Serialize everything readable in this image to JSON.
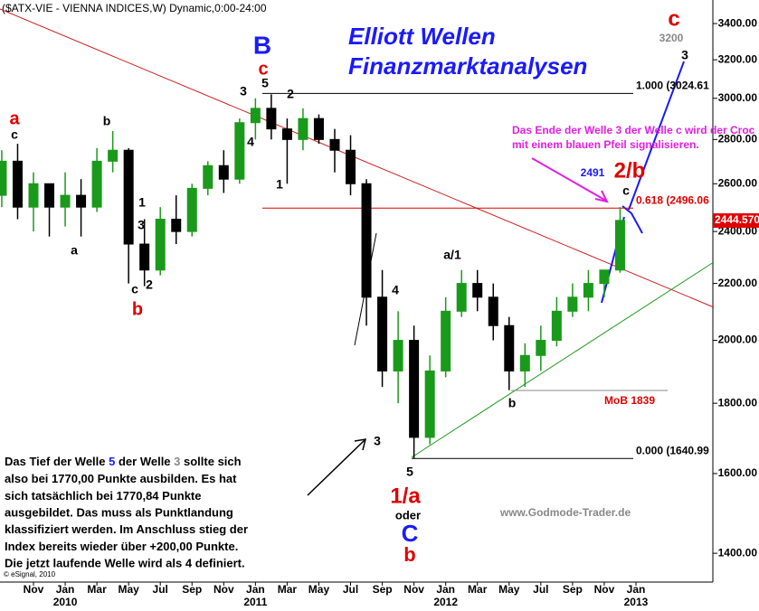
{
  "chart_data": {
    "type": "candlestick",
    "title": "($ATX-VIE - VIENNA INDICES,W) Dynamic,0:00-24:00",
    "log_scale": true,
    "categories": [
      null,
      null,
      "Nov",
      null,
      "Jan",
      null,
      "Mar",
      null,
      "May",
      null,
      "Jul",
      null,
      "Sep",
      null,
      "Nov",
      null,
      "Jan",
      null,
      "Mar",
      null,
      "May",
      null,
      "Jul",
      null,
      "Sep",
      null,
      "Nov",
      null,
      "Jan",
      null,
      "Mar",
      null,
      "May",
      null,
      "Jul",
      null,
      "Sep",
      null,
      "Nov",
      null,
      "Jan",
      null,
      null,
      null
    ],
    "year_labels": [
      null,
      null,
      null,
      null,
      "2010",
      null,
      null,
      null,
      null,
      null,
      null,
      null,
      null,
      null,
      null,
      null,
      "2011",
      null,
      null,
      null,
      null,
      null,
      null,
      null,
      null,
      null,
      null,
      null,
      "2012",
      null,
      null,
      null,
      null,
      null,
      null,
      null,
      null,
      null,
      null,
      null,
      "2013",
      null,
      null,
      null
    ],
    "open": [
      2550,
      2700,
      2500,
      2600,
      2500,
      2550,
      2500,
      2700,
      2750,
      2350,
      2250,
      2450,
      2400,
      2580,
      2680,
      2620,
      2880,
      2950,
      2850,
      2800,
      2900,
      2800,
      2750,
      2600,
      2150,
      1900,
      2000,
      1700,
      1900,
      2100,
      2200,
      2150,
      2050,
      1900,
      1950,
      2000,
      2100,
      2150,
      2200,
      2250,
      null,
      null,
      null,
      null
    ],
    "high": [
      2750,
      2780,
      2650,
      2600,
      2650,
      2620,
      2760,
      2840,
      2760,
      2450,
      2500,
      2550,
      2600,
      2700,
      2750,
      2900,
      3000,
      3020,
      2900,
      2950,
      2920,
      2850,
      2820,
      2620,
      2250,
      2100,
      2050,
      1950,
      2150,
      2250,
      2250,
      2200,
      2080,
      1990,
      2050,
      2150,
      2200,
      2250,
      2250,
      2500,
      null,
      null,
      null,
      null
    ],
    "low": [
      2500,
      2450,
      2400,
      2380,
      2420,
      2380,
      2480,
      2650,
      2200,
      2190,
      2230,
      2350,
      2380,
      2550,
      2560,
      2600,
      2800,
      2800,
      2600,
      2750,
      2780,
      2650,
      2550,
      2050,
      1850,
      1800,
      1640,
      1680,
      1880,
      2080,
      2100,
      2000,
      1840,
      1850,
      1900,
      1980,
      2080,
      2100,
      2150,
      2240,
      null,
      null,
      null,
      null
    ],
    "close": [
      2700,
      2500,
      2600,
      2500,
      2550,
      2500,
      2700,
      2750,
      2350,
      2250,
      2450,
      2400,
      2580,
      2680,
      2620,
      2880,
      2950,
      2850,
      2800,
      2900,
      2800,
      2750,
      2600,
      2150,
      1900,
      2000,
      1700,
      1900,
      2100,
      2200,
      2150,
      2050,
      1900,
      1950,
      2000,
      2100,
      2150,
      2200,
      2250,
      2445,
      null,
      null,
      null,
      null
    ],
    "up_color": "#1a9a1a",
    "down_color": "#000000",
    "ylim": [
      1326,
      3537
    ],
    "yticks": [
      {
        "value": 1400,
        "label": "1400.00"
      },
      {
        "value": 1600,
        "label": "1600.00"
      },
      {
        "value": 1800,
        "label": "1800.00"
      },
      {
        "value": 2000,
        "label": "2000.00"
      },
      {
        "value": 2200,
        "label": "2200.00"
      },
      {
        "value": 2400,
        "label": "2400.00"
      },
      {
        "value": 2600,
        "label": "2600.00"
      },
      {
        "value": 2800,
        "label": "2800.00"
      },
      {
        "value": 3000,
        "label": "3000.00"
      },
      {
        "value": 3200,
        "label": "3200.00"
      },
      {
        "value": 3400,
        "label": "3400.00"
      }
    ],
    "levels": [
      {
        "value": 3024.61,
        "label": "1.000 (3024.61",
        "color": "#000000"
      },
      {
        "value": 2496.06,
        "label": "0.618 (2496.06",
        "color": "#e00000"
      },
      {
        "value": 1640.99,
        "label": "0.000 (1640.99",
        "color": "#000000"
      },
      {
        "value": 1839,
        "label": "MoB 1839",
        "color": "#888888",
        "label_color": "#e00000"
      }
    ],
    "last_price": {
      "value": 2444.57,
      "label": "2444.570",
      "color": "#e00000"
    },
    "annotations": [
      {
        "text": "Elliott Wellen",
        "color": "#1a1aff"
      },
      {
        "text": "Finanzmarktanalysen",
        "color": "#1a1aff"
      },
      {
        "text": "c",
        "color": "#e00000"
      },
      {
        "text": "3200",
        "color": "#888888"
      },
      {
        "text": "3",
        "color": "#000000"
      },
      {
        "text": "B",
        "color": "#1a1aff"
      },
      {
        "text": "c",
        "color": "#e00000"
      },
      {
        "text": "3",
        "color": "#000000"
      },
      {
        "text": "5",
        "color": "#000000"
      },
      {
        "text": "2",
        "color": "#000000"
      },
      {
        "text": "4",
        "color": "#000000"
      },
      {
        "text": "1",
        "color": "#000000"
      },
      {
        "text": "a",
        "color": "#e00000"
      },
      {
        "text": "c",
        "color": "#000000"
      },
      {
        "text": "b",
        "color": "#000000"
      },
      {
        "text": "a",
        "color": "#000000"
      },
      {
        "text": "1",
        "color": "#000000"
      },
      {
        "text": "3",
        "color": "#000000"
      },
      {
        "text": "c",
        "color": "#000000"
      },
      {
        "text": "2",
        "color": "#000000"
      },
      {
        "text": "b",
        "color": "#e00000"
      },
      {
        "text": "4",
        "color": "#000000"
      },
      {
        "text": "3",
        "color": "#000000"
      },
      {
        "text": "5",
        "color": "#000000"
      },
      {
        "text": "1/a",
        "color": "#e00000"
      },
      {
        "text": "oder",
        "color": "#000000"
      },
      {
        "text": "C",
        "color": "#1a1aff"
      },
      {
        "text": "b",
        "color": "#e00000"
      },
      {
        "text": "a/1",
        "color": "#000000"
      },
      {
        "text": "b",
        "color": "#000000"
      },
      {
        "text": "2491",
        "color": "#1a1aff"
      },
      {
        "text": "2/b",
        "color": "#e00000"
      },
      {
        "text": "c",
        "color": "#000000"
      },
      {
        "text": "Das Ende der Welle 3 der Welle c wird der Croc",
        "color": "#e020e0"
      },
      {
        "text": "mit einem blauen Pfeil signalisieren.",
        "color": "#e020e0"
      },
      {
        "text": "www.Godmode-Trader.de",
        "color": "#888888"
      },
      {
        "text": "© eSignal, 2010",
        "color": "#000000"
      }
    ],
    "paragraph": [
      [
        {
          "text": "Das Tief der Welle ",
          "color": "#000000"
        },
        {
          "text": "5",
          "color": "#1a1aff"
        },
        {
          "text": " der Welle ",
          "color": "#000000"
        },
        {
          "text": "3",
          "color": "#888888"
        },
        {
          "text": " sollte sich",
          "color": "#000000"
        }
      ],
      "also bei 1770,00 Punkte ausbilden. Es hat",
      "sich tatsächlich bei 1770,84 Punkte",
      "ausgebildet. Das muss als Punktlandung",
      "klassifiziert werden. Im Anschluss stieg der",
      "Index bereits wieder über +200,00 Punkte.",
      "Die jetzt laufende Welle wird als 4 definiert."
    ]
  }
}
